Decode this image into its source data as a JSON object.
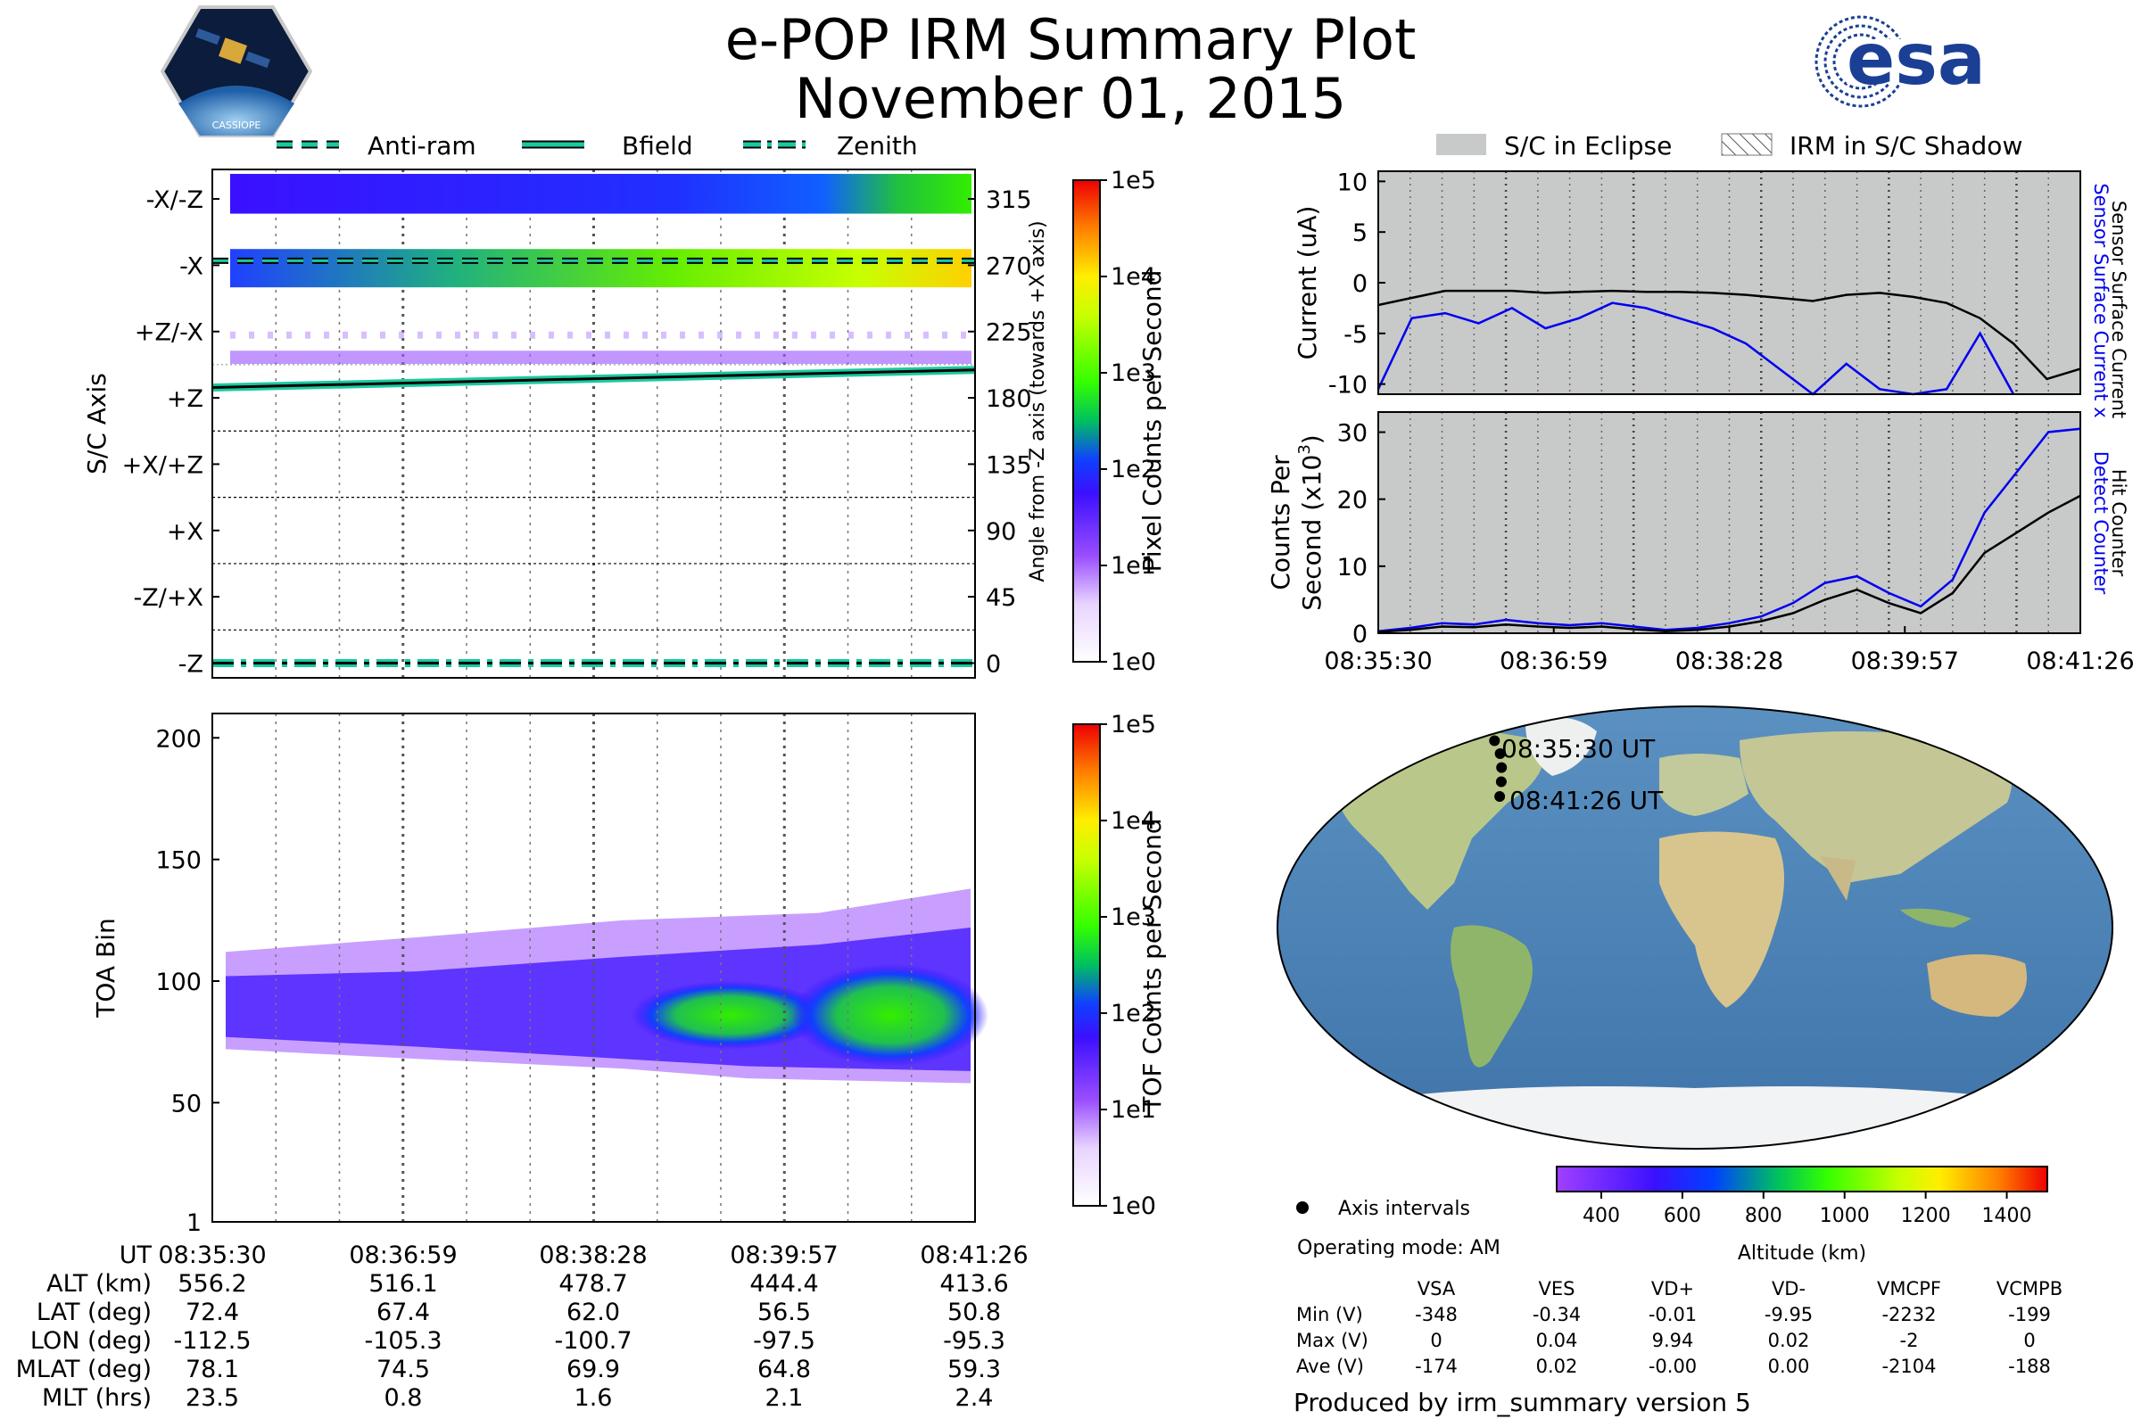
{
  "header": {
    "title": "e-POP IRM Summary Plot",
    "date": "November 01, 2015",
    "mission_logo_text": "CASSIOPE",
    "agency_logo_text": "esa"
  },
  "legend_left": [
    {
      "label": "Anti-ram",
      "style": "dashed"
    },
    {
      "label": "Bfield",
      "style": "solid"
    },
    {
      "label": "Zenith",
      "style": "dashdot"
    }
  ],
  "legend_right": [
    {
      "label": "S/C in Eclipse",
      "style": "gray-fill"
    },
    {
      "label": "IRM in S/C Shadow",
      "style": "hatched"
    }
  ],
  "colors": {
    "eclipse_gray": "#c8c9c9",
    "line_teal": "#1ac9a0",
    "detect_blue": "#0000ee",
    "esa_blue": "#1b3f94"
  },
  "chart_data": [
    {
      "id": "pixel-counts-panel",
      "type": "heatmap",
      "ylabel": "S/C Axis",
      "ylabel_right": "Angle from -Z axis (towards +X axis)",
      "y_axis_labels": [
        "-X/-Z",
        "-X",
        "+Z/-X",
        "+Z",
        "+X/+Z",
        "+X",
        "-Z/+X",
        "-Z"
      ],
      "y_axis_angles": [
        315,
        270,
        225,
        180,
        135,
        90,
        45,
        0
      ],
      "ylim": [
        -10,
        335
      ],
      "colorbar": {
        "label": "Pixel Counts per Second",
        "scale": "log",
        "min_label": "1e0",
        "ticks": [
          "1e0",
          "1e1",
          "1e2",
          "1e3",
          "1e4",
          "1e5"
        ]
      },
      "lines": [
        {
          "name": "Anti-ram",
          "angle_start": 273,
          "angle_end": 273
        },
        {
          "name": "Bfield",
          "angle_start": 187,
          "angle_end": 199
        },
        {
          "name": "Zenith",
          "angle_start": 0,
          "angle_end": 0
        }
      ]
    },
    {
      "id": "toa-panel",
      "type": "heatmap",
      "ylabel": "TOA Bin",
      "y_ticks": [
        1,
        50,
        100,
        150,
        200
      ],
      "ylim": [
        1,
        210
      ],
      "colorbar": {
        "label": "TOF Counts per Second",
        "scale": "log",
        "ticks": [
          "1e0",
          "1e1",
          "1e2",
          "1e3",
          "1e4",
          "1e5"
        ]
      }
    },
    {
      "id": "current-panel",
      "type": "line",
      "ylabel": "Current (uA)",
      "ylabel_right_1": "Sensor Surface Current x 5",
      "ylabel_right_2": "Sensor Surface Current",
      "y_ticks": [
        10,
        5,
        0,
        -5,
        -10
      ],
      "ylim": [
        -11,
        11
      ],
      "series": [
        {
          "name": "Sensor Surface Current",
          "color": "#000000",
          "values": [
            -2.2,
            -1.5,
            -0.8,
            -0.8,
            -0.8,
            -1.0,
            -0.9,
            -0.8,
            -0.9,
            -0.9,
            -1.0,
            -1.2,
            -1.5,
            -1.8,
            -1.2,
            -1.0,
            -1.4,
            -2.0,
            -3.5,
            -6.0,
            -9.5,
            -8.5
          ]
        },
        {
          "name": "Sensor Surface Current x 5",
          "color": "#0000ee",
          "values": [
            -10.5,
            -3.5,
            -3.0,
            -4.0,
            -2.5,
            -4.5,
            -3.5,
            -2.0,
            -2.5,
            -3.5,
            -4.5,
            -6.0,
            -8.5,
            -11.0,
            -8.0,
            -10.5,
            -11.0,
            -10.5,
            -5.0,
            -11.0,
            null,
            null
          ]
        }
      ]
    },
    {
      "id": "counts-panel",
      "type": "line",
      "ylabel": "Counts Per",
      "ylabel_2": "Second (x10",
      "ylabel_2_sup": "3",
      "ylabel_2_end": ")",
      "ylabel_right_1": "Detect Counter",
      "ylabel_right_2": "Hit Counter",
      "y_ticks": [
        0,
        10,
        20,
        30
      ],
      "ylim": [
        0,
        33
      ],
      "x_tick_labels": [
        "08:35:30",
        "08:36:59",
        "08:38:28",
        "08:39:57",
        "08:41:26"
      ],
      "series": [
        {
          "name": "Detect Counter",
          "color": "#0000ee",
          "values": [
            0.3,
            0.8,
            1.5,
            1.3,
            2.0,
            1.5,
            1.2,
            1.5,
            1.0,
            0.5,
            0.8,
            1.5,
            2.5,
            4.5,
            7.5,
            8.5,
            6.0,
            4.0,
            8.0,
            18.0,
            24.0,
            30.0,
            30.5
          ]
        },
        {
          "name": "Hit Counter",
          "color": "#000000",
          "values": [
            0.2,
            0.5,
            1.0,
            0.9,
            1.3,
            1.0,
            0.8,
            1.0,
            0.6,
            0.3,
            0.5,
            1.0,
            1.8,
            3.0,
            5.0,
            6.5,
            4.5,
            3.0,
            6.0,
            12.0,
            15.0,
            18.0,
            20.5
          ]
        }
      ]
    },
    {
      "id": "altitude-colorbar",
      "type": "heatmap",
      "label": "Altitude (km)",
      "ticks": [
        400,
        600,
        800,
        1000,
        1200,
        1400
      ],
      "range": [
        290,
        1500
      ]
    }
  ],
  "time_axis": {
    "tick_labels": [
      "08:35:30",
      "08:36:59",
      "08:38:28",
      "08:39:57",
      "08:41:26"
    ]
  },
  "ephemeris_table": {
    "rows": [
      {
        "label": "UT",
        "values": [
          "08:35:30",
          "08:36:59",
          "08:38:28",
          "08:39:57",
          "08:41:26"
        ]
      },
      {
        "label": "ALT (km)",
        "values": [
          "556.2",
          "516.1",
          "478.7",
          "444.4",
          "413.6"
        ]
      },
      {
        "label": "LAT (deg)",
        "values": [
          "72.4",
          "67.4",
          "62.0",
          "56.5",
          "50.8"
        ]
      },
      {
        "label": "LON (deg)",
        "values": [
          "-112.5",
          "-105.3",
          "-100.7",
          "-97.5",
          "-95.3"
        ]
      },
      {
        "label": "MLAT (deg)",
        "values": [
          "78.1",
          "74.5",
          "69.9",
          "64.8",
          "59.3"
        ]
      },
      {
        "label": "MLT (hrs)",
        "values": [
          "23.5",
          "0.8",
          "1.6",
          "2.1",
          "2.4"
        ]
      }
    ]
  },
  "map": {
    "start_label": "08:35:30 UT",
    "end_label": "08:41:26 UT",
    "track_points": [
      {
        "lat": 72.4,
        "lon": -112.5
      },
      {
        "lat": 67.4,
        "lon": -105.3
      },
      {
        "lat": 62.0,
        "lon": -100.7
      },
      {
        "lat": 56.5,
        "lon": -97.5
      },
      {
        "lat": 50.8,
        "lon": -95.3
      }
    ]
  },
  "info": {
    "axis_intervals_label": "Axis intervals",
    "operating_mode": "Operating mode: AM",
    "footer": "Produced by irm_summary version 5"
  },
  "voltage_table": {
    "headers": [
      "VSA",
      "VES",
      "VD+",
      "VD-",
      "VMCPF",
      "VCMPB"
    ],
    "rows": [
      {
        "label": "Min (V)",
        "values": [
          "-348",
          "-0.34",
          "-0.01",
          "-9.95",
          "-2232",
          "-199"
        ]
      },
      {
        "label": "Max (V)",
        "values": [
          "0",
          "0.04",
          "9.94",
          "0.02",
          "-2",
          "0"
        ]
      },
      {
        "label": "Ave (V)",
        "values": [
          "-174",
          "0.02",
          "-0.00",
          "0.00",
          "-2104",
          "-188"
        ]
      }
    ]
  }
}
